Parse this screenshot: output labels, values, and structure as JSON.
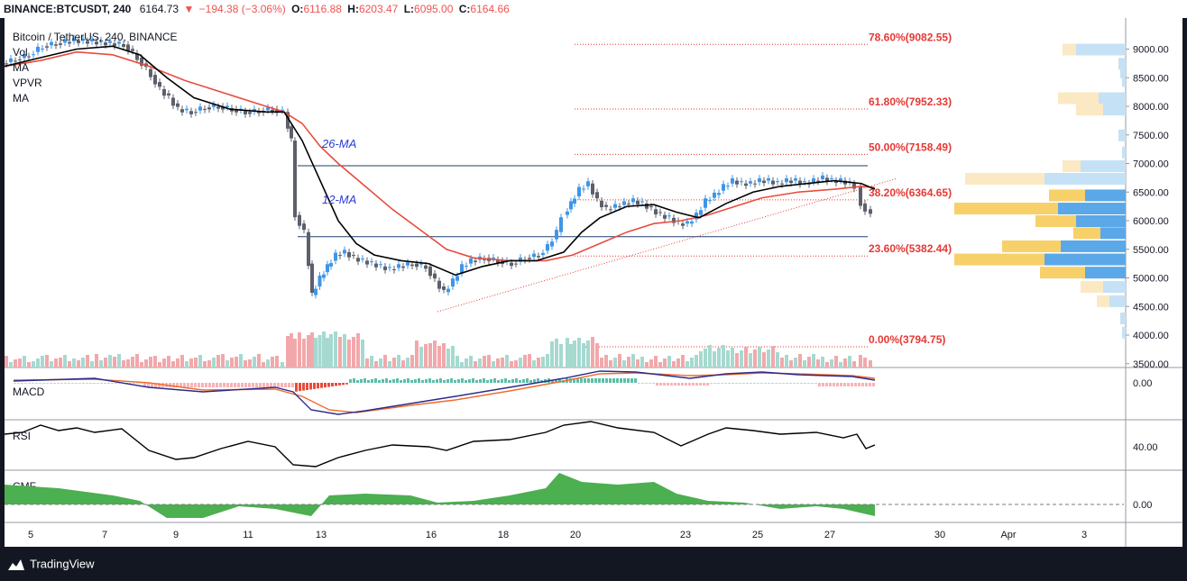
{
  "header": {
    "ticker": "BINANCE:BTCUSDT, 240",
    "last_price": "6164.73",
    "change": "−194.38 (−3.06%)",
    "open_label": "O:",
    "open": "6116.88",
    "high_label": "H:",
    "high": "6203.47",
    "low_label": "L:",
    "low": "6095.00",
    "close_label": "C:",
    "close": "6164.66"
  },
  "legend": {
    "title": "Bitcoin / TetherUS, 240, BINANCE",
    "indicators": [
      "Vol",
      "MA",
      "VPVR",
      "MA"
    ]
  },
  "panes": {
    "macd": "MACD",
    "rsi": "RSI",
    "cmf": "CMF"
  },
  "annotations": {
    "ma26": "26-MA",
    "ma12": "12-MA"
  },
  "fib_levels": [
    {
      "label": "78.60%(9082.55)",
      "price": 9082.55
    },
    {
      "label": "61.80%(7952.33)",
      "price": 7952.33
    },
    {
      "label": "50.00%(7158.49)",
      "price": 7158.49
    },
    {
      "label": "38.20%(6364.65)",
      "price": 6364.65
    },
    {
      "label": "23.60%(5382.44)",
      "price": 5382.44
    },
    {
      "label": "0.00%(3794.75)",
      "price": 3794.75
    }
  ],
  "horizontal_lines": [
    6960,
    5720
  ],
  "price_axis": [
    "9000.00",
    "8500.00",
    "8000.00",
    "7500.00",
    "7000.00",
    "6500.00",
    "6000.00",
    "5500.00",
    "5000.00",
    "4500.00",
    "4000.00",
    "3500.00"
  ],
  "macd_axis": "0.00",
  "rsi_axis": "40.00",
  "cmf_axis": "0.00",
  "time_axis": [
    "5",
    "7",
    "9",
    "11",
    "13",
    "16",
    "18",
    "20",
    "23",
    "25",
    "27",
    "30",
    "Apr",
    "3"
  ],
  "footer": {
    "brand": "TradingView"
  },
  "colors": {
    "up": "#3f96e6",
    "down": "#5d606b",
    "vol_up": "#a6d9d0",
    "vol_down": "#f2a8ab",
    "ma_fast": "#000000",
    "ma_slow": "#e84c3d",
    "fib": "#e53935",
    "hline": "#1e3f6e",
    "macd_line": "#2e2b8c",
    "signal_line": "#ef6c2b",
    "rsi": "#000000",
    "cmf": "#4caf50",
    "vpvr_blue": "#5aa8e8",
    "vpvr_yellow": "#f7d06a",
    "vpvr_blue_light": "#c5e1f5",
    "vpvr_yellow_light": "#fbe9c4"
  }
}
